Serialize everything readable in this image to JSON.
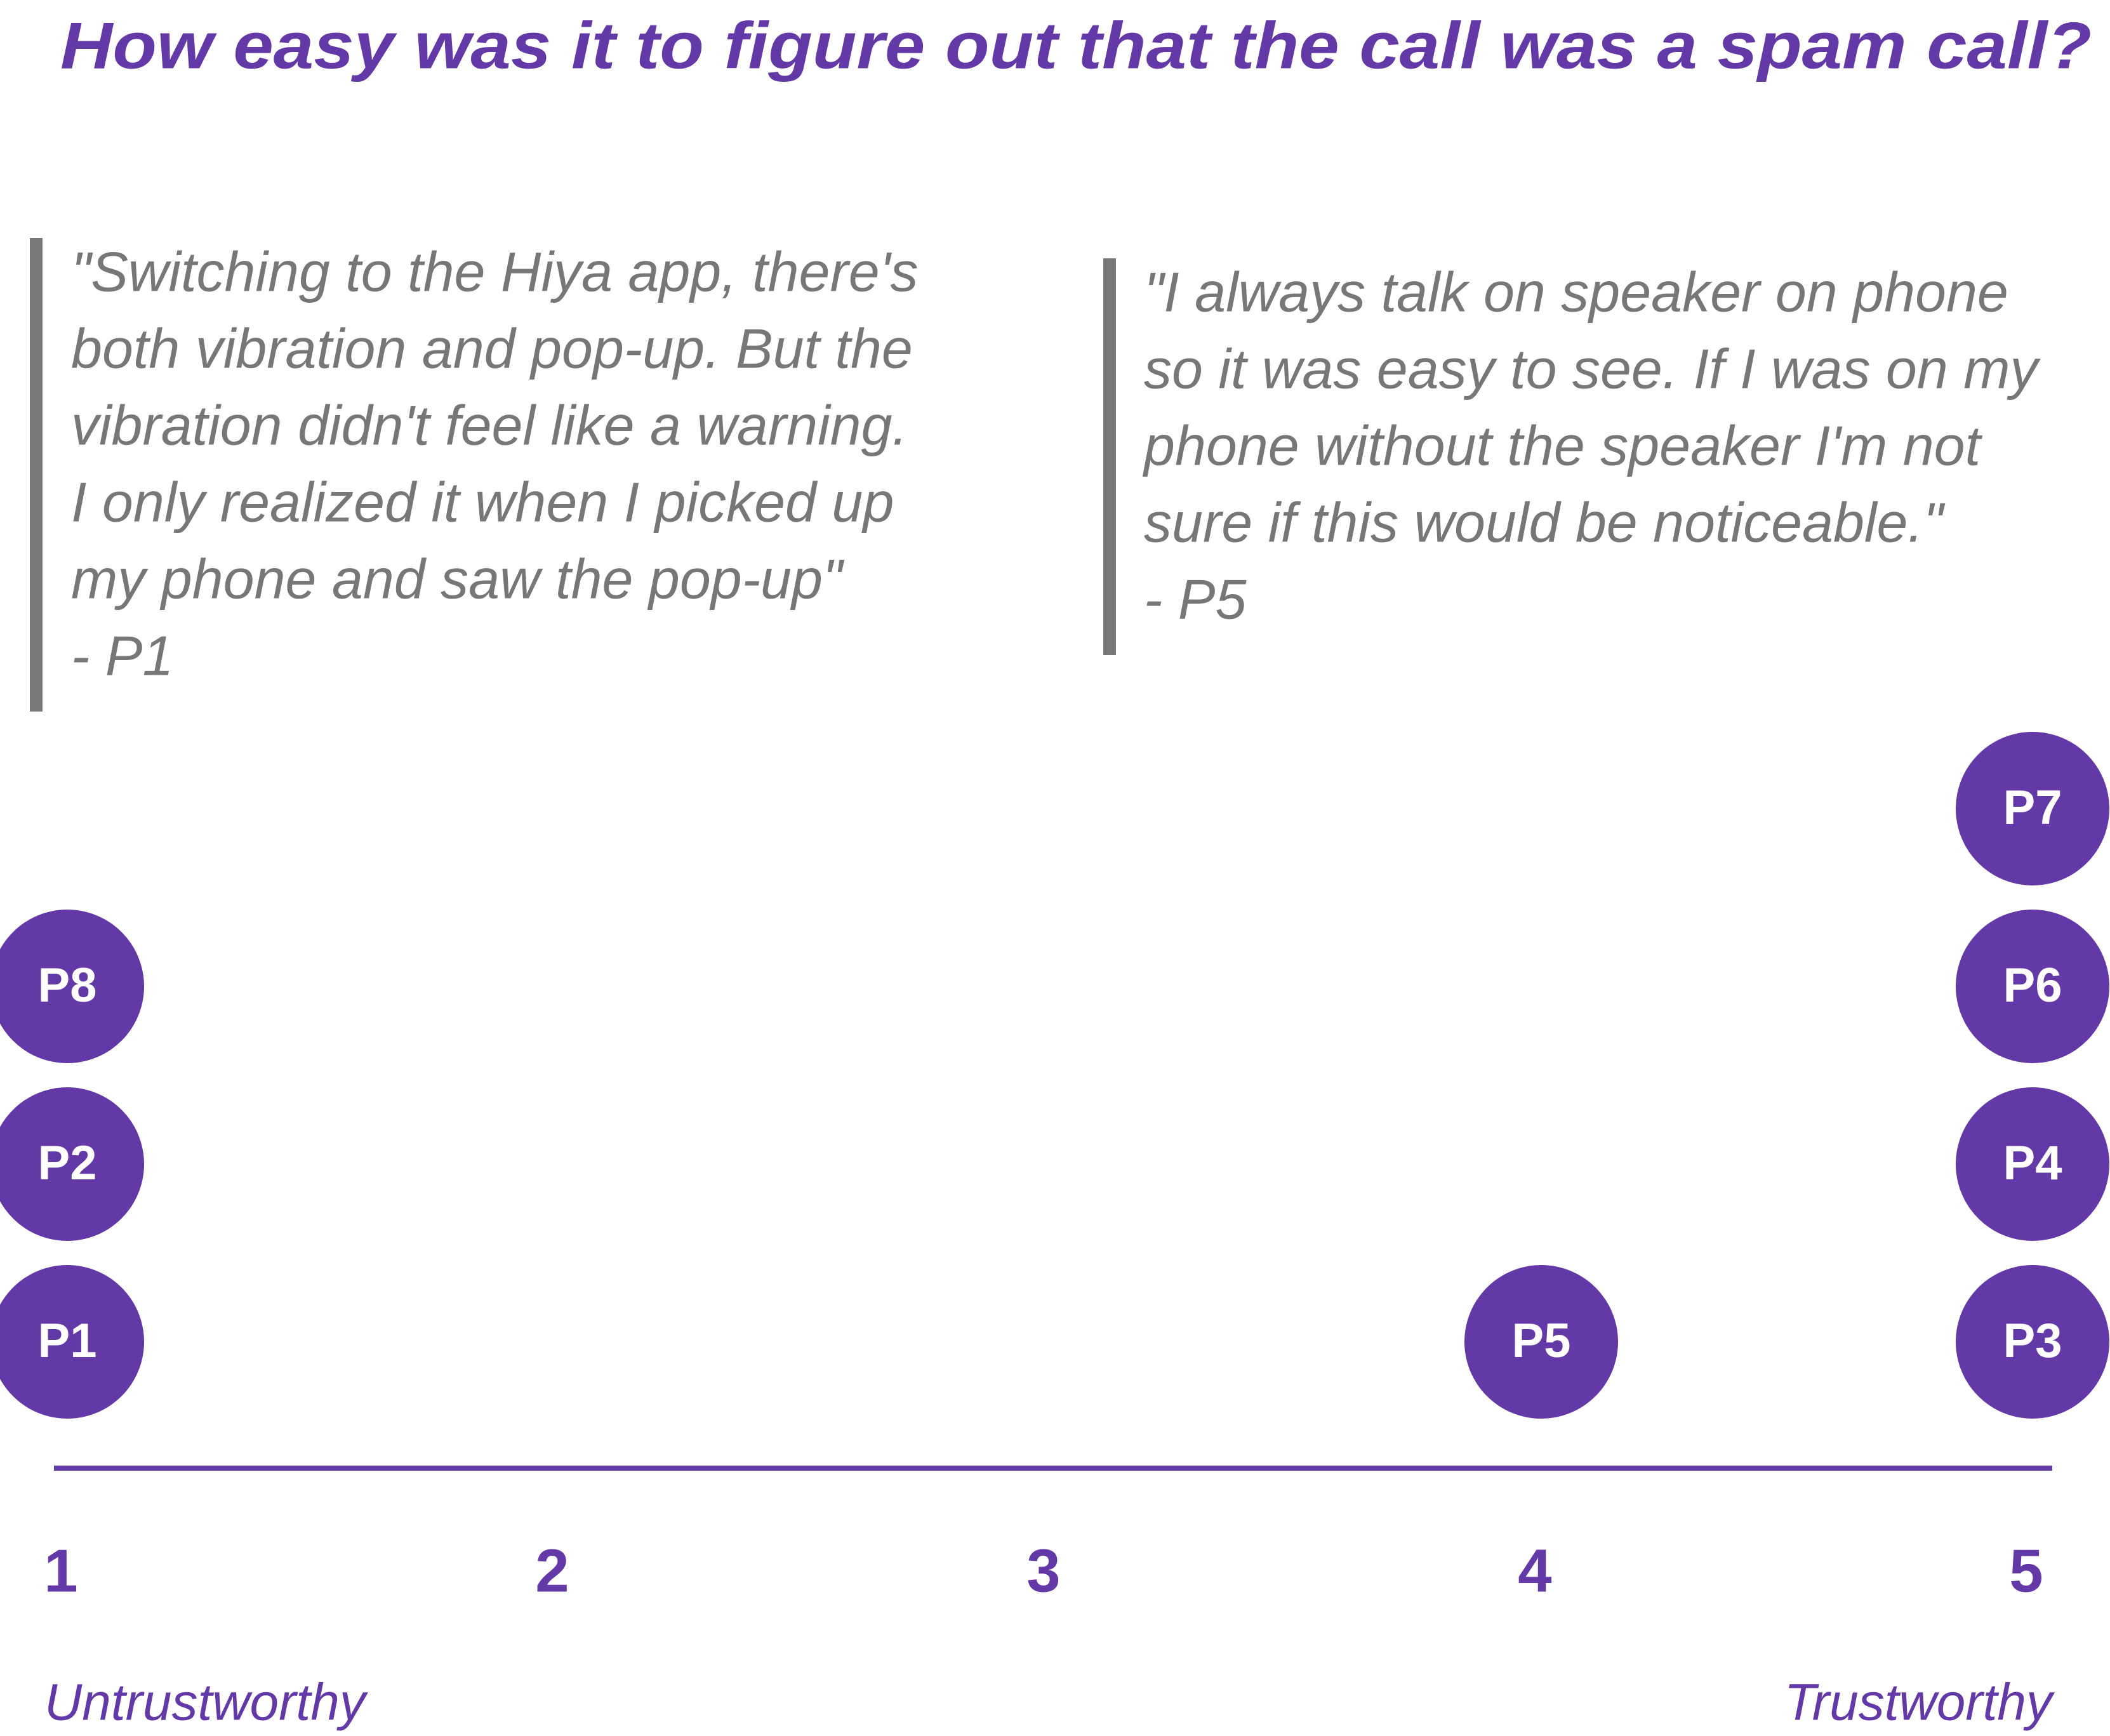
{
  "chart_data": {
    "type": "dot",
    "title": "How easy was it to figure out that the call was a spam call?",
    "color": "#6339a8",
    "label_color": "#ffffff",
    "quote_color": "#777777",
    "annotations": [
      {
        "lines": [
          "\"Switching to the Hiya app, there's",
          "both vibration and pop-up. But the",
          "vibration didn't feel like a warning.",
          "I only realized it when I picked up",
          "my phone and saw the pop-up\"",
          "- P1"
        ]
      },
      {
        "lines": [
          "\"I always talk on speaker on phone",
          "so it was easy to see. If I was on my",
          "phone without the speaker I'm not",
          "sure if this would be noticeable.\"",
          "- P5"
        ]
      }
    ],
    "points": [
      {
        "name": "P1",
        "x": 1
      },
      {
        "name": "P2",
        "x": 1
      },
      {
        "name": "P8",
        "x": 1
      },
      {
        "name": "P5",
        "x": 4
      },
      {
        "name": "P3",
        "x": 5
      },
      {
        "name": "P4",
        "x": 5
      },
      {
        "name": "P6",
        "x": 5
      },
      {
        "name": "P7",
        "x": 5
      }
    ],
    "xlim": [
      1,
      5
    ],
    "xticks": [
      1,
      2,
      3,
      4,
      5
    ],
    "xlabel_left": "Untrustworthy",
    "xlabel_right": "Trustworthy"
  }
}
